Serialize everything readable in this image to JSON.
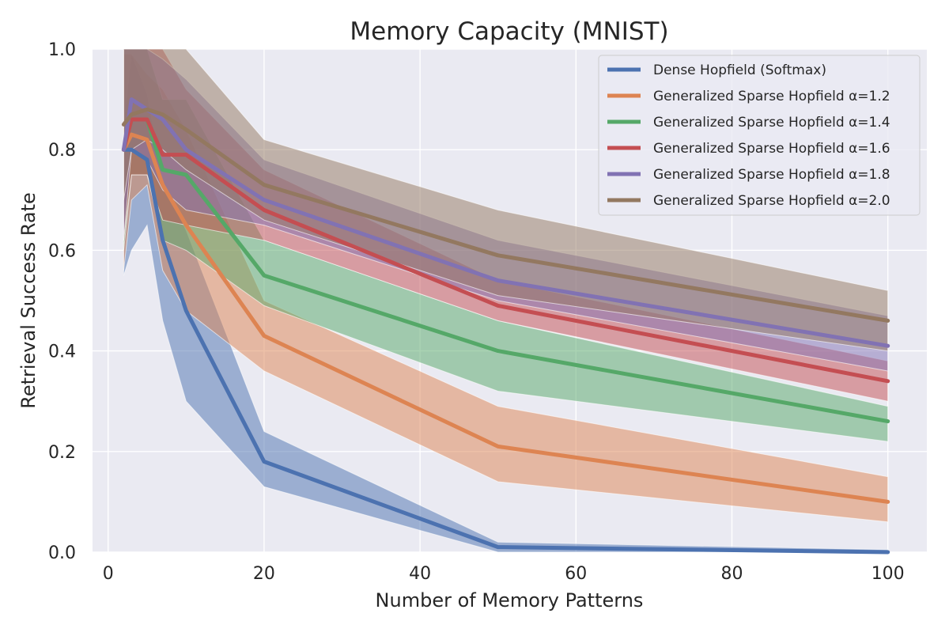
{
  "chart_data": {
    "type": "line",
    "title": "Memory Capacity (MNIST)",
    "xlabel": "Number of Memory Patterns",
    "ylabel": "Retrieval Success Rate",
    "xlim": [
      -2,
      105
    ],
    "ylim": [
      0,
      1.0
    ],
    "xticks": [
      0,
      20,
      40,
      60,
      80,
      100
    ],
    "xtick_labels": [
      "0",
      "20",
      "40",
      "60",
      "80",
      "100"
    ],
    "yticks": [
      0.0,
      0.2,
      0.4,
      0.6,
      0.8,
      1.0
    ],
    "ytick_labels": [
      "0.0",
      "0.2",
      "0.4",
      "0.6",
      "0.8",
      "1.0"
    ],
    "grid": true,
    "legend_position": "top-right",
    "x": [
      2,
      3,
      5,
      7,
      10,
      20,
      50,
      100
    ],
    "series": [
      {
        "name": "Dense Hopfield (Softmax)",
        "color": "#4c72b0",
        "values": [
          0.8,
          0.8,
          0.78,
          0.62,
          0.48,
          0.18,
          0.01,
          0.0
        ],
        "lower": [
          0.55,
          0.6,
          0.65,
          0.46,
          0.3,
          0.13,
          0.0,
          0.0
        ],
        "upper": [
          0.85,
          0.99,
          0.91,
          0.74,
          0.64,
          0.24,
          0.02,
          0.005
        ]
      },
      {
        "name": "Generalized Sparse Hopfield α=1.2",
        "color": "#dd8452",
        "values": [
          0.8,
          0.83,
          0.82,
          0.73,
          0.65,
          0.43,
          0.21,
          0.1
        ],
        "lower": [
          0.56,
          0.7,
          0.73,
          0.56,
          0.48,
          0.36,
          0.14,
          0.06
        ],
        "upper": [
          0.99,
          0.99,
          0.95,
          0.92,
          0.84,
          0.5,
          0.29,
          0.15
        ]
      },
      {
        "name": "Generalized Sparse Hopfield α=1.4",
        "color": "#55a868",
        "values": [
          0.8,
          0.86,
          0.86,
          0.76,
          0.75,
          0.55,
          0.4,
          0.26
        ],
        "lower": [
          0.6,
          0.75,
          0.75,
          0.62,
          0.6,
          0.49,
          0.32,
          0.22
        ],
        "upper": [
          1.0,
          1.0,
          1.0,
          0.9,
          0.9,
          0.62,
          0.46,
          0.29
        ]
      },
      {
        "name": "Generalized Sparse Hopfield α=1.6",
        "color": "#c44e52",
        "values": [
          0.8,
          0.86,
          0.86,
          0.79,
          0.79,
          0.68,
          0.49,
          0.34
        ],
        "lower": [
          0.62,
          0.75,
          0.75,
          0.66,
          0.65,
          0.62,
          0.46,
          0.3
        ],
        "upper": [
          1.0,
          1.0,
          1.0,
          1.0,
          0.92,
          0.76,
          0.54,
          0.38
        ]
      },
      {
        "name": "Generalized Sparse Hopfield α=1.8",
        "color": "#8172b3",
        "values": [
          0.8,
          0.9,
          0.88,
          0.86,
          0.8,
          0.7,
          0.54,
          0.41
        ],
        "lower": [
          0.62,
          0.8,
          0.78,
          0.72,
          0.68,
          0.65,
          0.5,
          0.36
        ],
        "upper": [
          1.0,
          1.0,
          1.0,
          0.98,
          0.94,
          0.78,
          0.62,
          0.47
        ]
      },
      {
        "name": "Generalized Sparse Hopfield α=2.0",
        "color": "#937860",
        "values": [
          0.85,
          0.87,
          0.88,
          0.87,
          0.84,
          0.73,
          0.59,
          0.46
        ],
        "lower": [
          0.7,
          0.8,
          0.82,
          0.8,
          0.76,
          0.66,
          0.51,
          0.4
        ],
        "upper": [
          1.0,
          1.0,
          1.0,
          1.0,
          1.0,
          0.82,
          0.68,
          0.52
        ]
      }
    ]
  }
}
